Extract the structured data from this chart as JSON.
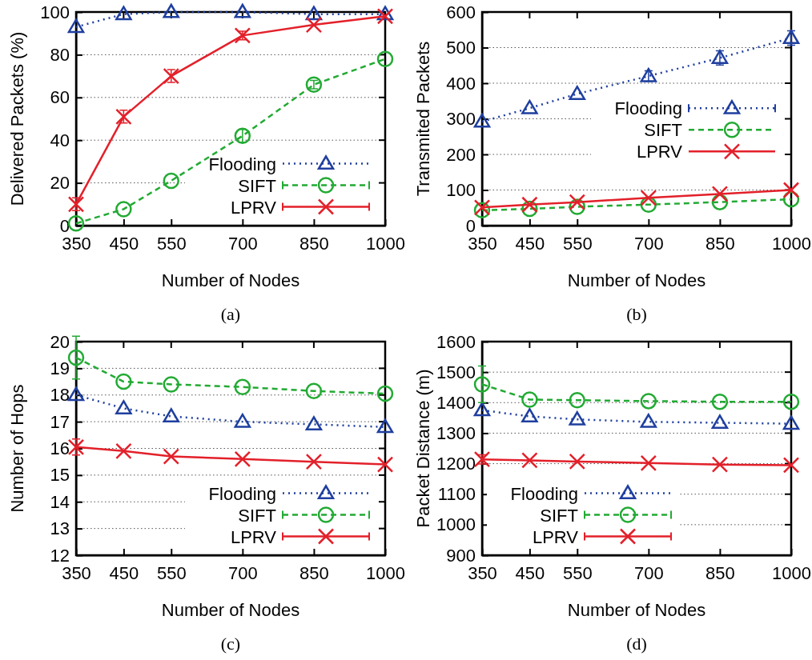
{
  "chart_data": [
    {
      "type": "line",
      "xlabel": "Number of Nodes",
      "ylabel": "Delivered Packets (%)",
      "x": [
        350,
        450,
        550,
        700,
        850,
        1000
      ],
      "xlim": [
        350,
        1000
      ],
      "xticks": [
        350,
        450,
        550,
        700,
        850,
        1000
      ],
      "ylim": [
        0,
        100
      ],
      "yticks": [
        0,
        20,
        40,
        60,
        80,
        100
      ],
      "grid": "y",
      "legend": "bottom right",
      "annotations": [
        "(a)"
      ],
      "series": [
        {
          "name": "Flooding",
          "color": "#1f3f9f",
          "marker": "triangle",
          "line_style": "dotted",
          "values": [
            93,
            99,
            100,
            100,
            99,
            99
          ]
        },
        {
          "name": "SIFT",
          "color": "#22aa33",
          "marker": "circle",
          "line_style": "dashed",
          "values": [
            1,
            7.7,
            21,
            42,
            66,
            78
          ],
          "errors": [
            null,
            null,
            null,
            3,
            2,
            null
          ]
        },
        {
          "name": "LPRV",
          "color": "#e3202a",
          "marker": "cross",
          "line_style": "solid",
          "values": [
            10,
            51,
            70,
            89,
            94,
            98
          ],
          "errors": [
            3,
            3,
            3,
            2,
            null,
            null
          ]
        }
      ]
    },
    {
      "type": "line",
      "xlabel": "Number of Nodes",
      "ylabel": "Transmited Packets",
      "x": [
        350,
        450,
        550,
        700,
        850,
        1000
      ],
      "xlim": [
        350,
        1000
      ],
      "xticks": [
        350,
        450,
        550,
        700,
        850,
        1000
      ],
      "ylim": [
        0,
        600
      ],
      "yticks": [
        0,
        100,
        200,
        300,
        400,
        500,
        600
      ],
      "grid": "y",
      "legend": "right",
      "annotations": [
        "(b)"
      ],
      "series": [
        {
          "name": "Flooding",
          "color": "#1f3f9f",
          "marker": "triangle",
          "line_style": "dotted",
          "values": [
            292,
            330,
            370,
            420,
            471,
            527
          ],
          "errors": [
            null,
            null,
            null,
            15,
            20,
            20
          ]
        },
        {
          "name": "SIFT",
          "color": "#22aa33",
          "marker": "circle",
          "line_style": "dashed",
          "values": [
            43,
            47,
            53,
            59,
            66,
            74
          ]
        },
        {
          "name": "LPRV",
          "color": "#e3202a",
          "marker": "cross",
          "line_style": "solid",
          "values": [
            51,
            59,
            66,
            78,
            89,
            100
          ]
        }
      ]
    },
    {
      "type": "line",
      "xlabel": "Number of Nodes",
      "ylabel": "Number of Hops",
      "x": [
        350,
        450,
        550,
        700,
        850,
        1000
      ],
      "xlim": [
        350,
        1000
      ],
      "xticks": [
        350,
        450,
        550,
        700,
        850,
        1000
      ],
      "ylim": [
        12,
        20
      ],
      "yticks": [
        12,
        13,
        14,
        15,
        16,
        17,
        18,
        19,
        20
      ],
      "grid": "y",
      "legend": "bottom right",
      "annotations": [
        "(c)"
      ],
      "series": [
        {
          "name": "Flooding",
          "color": "#1f3f9f",
          "marker": "triangle",
          "line_style": "dotted",
          "values": [
            18,
            17.5,
            17.2,
            17,
            16.9,
            16.8
          ]
        },
        {
          "name": "SIFT",
          "color": "#22aa33",
          "marker": "circle",
          "line_style": "dashed",
          "values": [
            19.4,
            18.5,
            18.4,
            18.3,
            18.15,
            18.05
          ],
          "errors": [
            0.8,
            null,
            null,
            null,
            null,
            null
          ]
        },
        {
          "name": "LPRV",
          "color": "#e3202a",
          "marker": "cross",
          "line_style": "solid",
          "values": [
            16.05,
            15.9,
            15.7,
            15.6,
            15.5,
            15.4
          ],
          "errors": [
            0.3,
            null,
            null,
            null,
            null,
            null
          ]
        }
      ]
    },
    {
      "type": "line",
      "xlabel": "Number of Nodes",
      "ylabel": "Packet Distance (m)",
      "x": [
        350,
        450,
        550,
        700,
        850,
        1000
      ],
      "xlim": [
        350,
        1000
      ],
      "xticks": [
        350,
        450,
        550,
        700,
        850,
        1000
      ],
      "ylim": [
        900,
        1600
      ],
      "yticks": [
        900,
        1000,
        1100,
        1200,
        1300,
        1400,
        1500,
        1600
      ],
      "grid": "y",
      "legend": "bottom",
      "annotations": [
        "(d)"
      ],
      "series": [
        {
          "name": "Flooding",
          "color": "#1f3f9f",
          "marker": "triangle",
          "line_style": "dotted",
          "values": [
            1375,
            1355,
            1345,
            1337,
            1334,
            1331
          ]
        },
        {
          "name": "SIFT",
          "color": "#22aa33",
          "marker": "circle",
          "line_style": "dashed",
          "values": [
            1460,
            1410,
            1408,
            1405,
            1403,
            1403
          ],
          "errors": [
            60,
            null,
            null,
            null,
            null,
            null
          ]
        },
        {
          "name": "LPRV",
          "color": "#e3202a",
          "marker": "cross",
          "line_style": "solid",
          "values": [
            1214,
            1211,
            1207,
            1202,
            1197,
            1195
          ],
          "errors": [
            15,
            null,
            null,
            null,
            null,
            null
          ]
        }
      ]
    }
  ]
}
